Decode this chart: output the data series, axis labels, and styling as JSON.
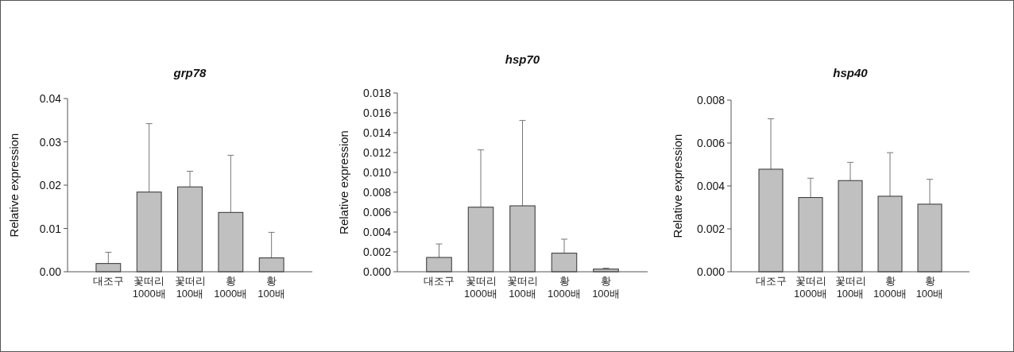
{
  "chart_data": [
    {
      "type": "bar",
      "title": "grp78",
      "ylabel": "Relative expression",
      "categories": [
        "대조구",
        "꽃떠리\n1000배",
        "꽃떠리\n100배",
        "황\n1000배",
        "황\n100배"
      ],
      "color": "#c0c0c0",
      "values": [
        0.0019,
        0.0184,
        0.0196,
        0.0137,
        0.0032
      ],
      "errors": [
        [
          0.0019,
          0.0045
        ],
        [
          0.0184,
          0.0342
        ],
        [
          0.0196,
          0.0232
        ],
        [
          0.0137,
          0.0269
        ],
        [
          0.0032,
          0.0091
        ]
      ],
      "ylim": [
        0,
        0.04
      ],
      "yticks": [
        {
          "value": 0,
          "label": "0.00"
        },
        {
          "value": 0.01,
          "label": "0.01"
        },
        {
          "value": 0.02,
          "label": "0.02"
        },
        {
          "value": 0.03,
          "label": "0.03"
        },
        {
          "value": 0.04,
          "label": "0.04"
        }
      ]
    },
    {
      "type": "bar",
      "title": "hsp70",
      "ylabel": "Relative expression",
      "categories": [
        "대조구",
        "꽃떠리\n1000배",
        "꽃떠리\n100배",
        "황\n1000배",
        "황\n100배"
      ],
      "color": "#c0c0c0",
      "values": [
        0.00144,
        0.0065,
        0.00664,
        0.00187,
        0.00027
      ],
      "errors": [
        [
          0.00144,
          0.0028
        ],
        [
          0.0065,
          0.01227
        ],
        [
          0.00664,
          0.01523
        ],
        [
          0.00187,
          0.00328
        ],
        [
          0.00027,
          0.00037
        ]
      ],
      "ylim": [
        0,
        0.018
      ],
      "yticks": [
        {
          "value": 0,
          "label": "0.000"
        },
        {
          "value": 0.002,
          "label": "0.002"
        },
        {
          "value": 0.004,
          "label": "0.004"
        },
        {
          "value": 0.006,
          "label": "0.006"
        },
        {
          "value": 0.008,
          "label": "0.008"
        },
        {
          "value": 0.01,
          "label": "0.010"
        },
        {
          "value": 0.012,
          "label": "0.012"
        },
        {
          "value": 0.014,
          "label": "0.014"
        },
        {
          "value": 0.016,
          "label": "0.016"
        },
        {
          "value": 0.018,
          "label": "0.018"
        }
      ]
    },
    {
      "type": "bar",
      "title": "hsp40",
      "ylabel": "Relative expression",
      "categories": [
        "대조구",
        "꽃떠리\n1000배",
        "꽃떠리\n100배",
        "황\n1000배",
        "황\n100배"
      ],
      "color": "#c0c0c0",
      "values": [
        0.00478,
        0.00346,
        0.00425,
        0.00352,
        0.00315
      ],
      "errors": [
        [
          0.00478,
          0.00713
        ],
        [
          0.00346,
          0.00436
        ],
        [
          0.00425,
          0.0051
        ],
        [
          0.00352,
          0.00555
        ],
        [
          0.00315,
          0.00431
        ]
      ],
      "ylim": [
        0,
        0.008
      ],
      "yticks": [
        {
          "value": 0,
          "label": "0.000"
        },
        {
          "value": 0.002,
          "label": "0.002"
        },
        {
          "value": 0.004,
          "label": "0.004"
        },
        {
          "value": 0.006,
          "label": "0.006"
        },
        {
          "value": 0.008,
          "label": "0.008"
        }
      ]
    }
  ]
}
